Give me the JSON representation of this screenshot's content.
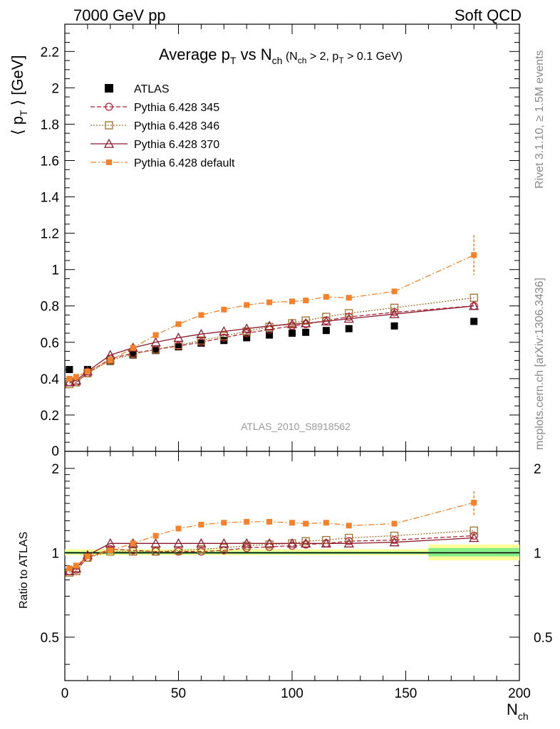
{
  "header": {
    "energy_label": "7000 GeV pp",
    "process_label": "Soft QCD"
  },
  "side_labels": {
    "rivet": "Rivet 3.1.10, ≥ 1.5M events",
    "mcplots": "mcplots.cern.ch [arXiv:1306.3436]"
  },
  "chart_data": [
    {
      "type": "scatter",
      "panel": "main",
      "title": "Average pT vs Nch (Nch > 2, pT > 0.1 GeV)",
      "title_parts": {
        "a": "Average p",
        "a_sub": "T",
        "b": " vs N",
        "b_sub": "ch",
        "c": " (N",
        "c_sub": "ch",
        "d": " > 2, p",
        "d_sub": "T",
        "e": " > 0.1 GeV)"
      },
      "ylabel": "⟨ pT ⟩ [GeV]",
      "ylabel_parts": {
        "a": "⟨ p",
        "a_sub": "T",
        "b": " ⟩ [GeV]"
      },
      "xlim": [
        0,
        200
      ],
      "ylim": [
        0,
        2.35
      ],
      "yticks": [
        0.2,
        0.4,
        0.6,
        0.8,
        1,
        1.2,
        1.4,
        1.6,
        1.8,
        2,
        2.2
      ],
      "ytick_labels": [
        "0.2",
        "0.4",
        "0.6",
        "0.8",
        "1",
        "1.2",
        "1.4",
        "1.6",
        "1.8",
        "2",
        "2.2"
      ],
      "analysis_label": "ATLAS_2010_S8918562",
      "legend_position": "top-left",
      "series": [
        {
          "name": "ATLAS",
          "color": "#000000",
          "marker": "filled-square",
          "points": [
            [
              2,
              0.45
            ],
            [
              10,
              0.45
            ],
            [
              20,
              0.495
            ],
            [
              30,
              0.53
            ],
            [
              40,
              0.555
            ],
            [
              50,
              0.575
            ],
            [
              60,
              0.595
            ],
            [
              70,
              0.61
            ],
            [
              80,
              0.625
            ],
            [
              90,
              0.64
            ],
            [
              100,
              0.65
            ],
            [
              106,
              0.655
            ],
            [
              115,
              0.665
            ],
            [
              125,
              0.675
            ],
            [
              145,
              0.69
            ],
            [
              180,
              0.715
            ]
          ]
        },
        {
          "name": "Pythia 6.428 345",
          "color": "#b22235",
          "marker": "open-circle",
          "line": "dashed",
          "points": [
            [
              2,
              0.38
            ],
            [
              5,
              0.38
            ],
            [
              10,
              0.43
            ],
            [
              20,
              0.51
            ],
            [
              30,
              0.54
            ],
            [
              40,
              0.56
            ],
            [
              50,
              0.58
            ],
            [
              60,
              0.6
            ],
            [
              70,
              0.625
            ],
            [
              80,
              0.65
            ],
            [
              90,
              0.67
            ],
            [
              100,
              0.69
            ],
            [
              106,
              0.7
            ],
            [
              115,
              0.72
            ],
            [
              125,
              0.74
            ],
            [
              145,
              0.765
            ],
            [
              180,
              0.8
            ]
          ]
        },
        {
          "name": "Pythia 6.428 346",
          "color": "#a07028",
          "marker": "open-square",
          "line": "dotted",
          "points": [
            [
              2,
              0.37
            ],
            [
              5,
              0.38
            ],
            [
              10,
              0.43
            ],
            [
              20,
              0.5
            ],
            [
              30,
              0.535
            ],
            [
              40,
              0.56
            ],
            [
              50,
              0.585
            ],
            [
              60,
              0.61
            ],
            [
              70,
              0.635
            ],
            [
              80,
              0.66
            ],
            [
              90,
              0.685
            ],
            [
              100,
              0.705
            ],
            [
              106,
              0.72
            ],
            [
              115,
              0.74
            ],
            [
              125,
              0.76
            ],
            [
              145,
              0.79
            ],
            [
              180,
              0.845
            ]
          ]
        },
        {
          "name": "Pythia 6.428 370",
          "color": "#8b1a2c",
          "marker": "open-triangle",
          "line": "solid",
          "points": [
            [
              2,
              0.38
            ],
            [
              5,
              0.39
            ],
            [
              10,
              0.44
            ],
            [
              20,
              0.53
            ],
            [
              30,
              0.57
            ],
            [
              40,
              0.6
            ],
            [
              50,
              0.625
            ],
            [
              60,
              0.645
            ],
            [
              70,
              0.66
            ],
            [
              80,
              0.675
            ],
            [
              90,
              0.69
            ],
            [
              100,
              0.7
            ],
            [
              106,
              0.705
            ],
            [
              115,
              0.715
            ],
            [
              125,
              0.73
            ],
            [
              145,
              0.755
            ],
            [
              180,
              0.8
            ]
          ]
        },
        {
          "name": "Pythia 6.428 default",
          "color": "#f5822a",
          "marker": "filled-small-square",
          "line": "dashdot",
          "points": [
            [
              2,
              0.4
            ],
            [
              5,
              0.41
            ],
            [
              10,
              0.44
            ],
            [
              20,
              0.5
            ],
            [
              30,
              0.57
            ],
            [
              40,
              0.64
            ],
            [
              50,
              0.7
            ],
            [
              60,
              0.75
            ],
            [
              70,
              0.78
            ],
            [
              80,
              0.805
            ],
            [
              90,
              0.82
            ],
            [
              100,
              0.825
            ],
            [
              106,
              0.83
            ],
            [
              115,
              0.85
            ],
            [
              125,
              0.845
            ],
            [
              145,
              0.88
            ],
            [
              180,
              1.08
            ]
          ],
          "last_point_error": 0.11
        }
      ]
    },
    {
      "type": "scatter",
      "panel": "ratio",
      "ylabel": "Ratio to ATLAS",
      "xlabel": "Nch",
      "xlabel_parts": {
        "a": "N",
        "a_sub": "ch"
      },
      "xlim": [
        0,
        200
      ],
      "ylim": [
        0.35,
        2.3
      ],
      "y_scale": "log",
      "xticks": [
        0,
        50,
        100,
        150,
        200
      ],
      "xtick_labels": [
        "0",
        "50",
        "100",
        "150",
        "200"
      ],
      "yticks": [
        0.5,
        1,
        2
      ],
      "ytick_labels": [
        "0.5",
        "1",
        "2"
      ],
      "series": [
        {
          "name": "Pythia 6.428 345",
          "color": "#b22235",
          "marker": "open-circle",
          "line": "dashed",
          "points": [
            [
              2,
              0.86
            ],
            [
              5,
              0.87
            ],
            [
              10,
              0.96
            ],
            [
              20,
              1.03
            ],
            [
              30,
              1.02
            ],
            [
              40,
              1.01
            ],
            [
              50,
              1.01
            ],
            [
              60,
              1.01
            ],
            [
              70,
              1.02
            ],
            [
              80,
              1.04
            ],
            [
              90,
              1.05
            ],
            [
              100,
              1.06
            ],
            [
              106,
              1.07
            ],
            [
              115,
              1.08
            ],
            [
              125,
              1.1
            ],
            [
              145,
              1.11
            ],
            [
              180,
              1.15
            ]
          ]
        },
        {
          "name": "Pythia 6.428 346",
          "color": "#a07028",
          "marker": "open-square",
          "line": "dotted",
          "points": [
            [
              2,
              0.85
            ],
            [
              5,
              0.86
            ],
            [
              10,
              0.96
            ],
            [
              20,
              1.01
            ],
            [
              30,
              1.01
            ],
            [
              40,
              1.01
            ],
            [
              50,
              1.02
            ],
            [
              60,
              1.03
            ],
            [
              70,
              1.04
            ],
            [
              80,
              1.06
            ],
            [
              90,
              1.07
            ],
            [
              100,
              1.08
            ],
            [
              106,
              1.1
            ],
            [
              115,
              1.11
            ],
            [
              125,
              1.13
            ],
            [
              145,
              1.15
            ],
            [
              180,
              1.2
            ]
          ]
        },
        {
          "name": "Pythia 6.428 370",
          "color": "#8b1a2c",
          "marker": "open-triangle",
          "line": "solid",
          "points": [
            [
              2,
              0.86
            ],
            [
              5,
              0.88
            ],
            [
              10,
              0.98
            ],
            [
              20,
              1.08
            ],
            [
              30,
              1.08
            ],
            [
              40,
              1.08
            ],
            [
              50,
              1.08
            ],
            [
              60,
              1.08
            ],
            [
              70,
              1.08
            ],
            [
              80,
              1.08
            ],
            [
              90,
              1.08
            ],
            [
              100,
              1.08
            ],
            [
              106,
              1.08
            ],
            [
              115,
              1.08
            ],
            [
              125,
              1.08
            ],
            [
              145,
              1.09
            ],
            [
              180,
              1.13
            ]
          ]
        },
        {
          "name": "Pythia 6.428 default",
          "color": "#f5822a",
          "marker": "filled-small-square",
          "line": "dashdot",
          "points": [
            [
              2,
              0.88
            ],
            [
              5,
              0.9
            ],
            [
              10,
              0.97
            ],
            [
              20,
              1.02
            ],
            [
              30,
              1.08
            ],
            [
              40,
              1.15
            ],
            [
              50,
              1.22
            ],
            [
              60,
              1.26
            ],
            [
              70,
              1.28
            ],
            [
              80,
              1.29
            ],
            [
              90,
              1.29
            ],
            [
              100,
              1.28
            ],
            [
              106,
              1.27
            ],
            [
              115,
              1.28
            ],
            [
              125,
              1.25
            ],
            [
              145,
              1.27
            ],
            [
              180,
              1.51
            ]
          ],
          "last_point_error": 0.15
        }
      ],
      "reference_line": 1,
      "uncertainty_bands": [
        {
          "x": [
            0,
            160
          ],
          "inner": [
            0.99,
            1.01
          ],
          "outer": [
            0.98,
            1.03
          ]
        },
        {
          "x": [
            160,
            200
          ],
          "inner": [
            0.97,
            1.04
          ],
          "outer": [
            0.94,
            1.07
          ]
        }
      ]
    }
  ]
}
